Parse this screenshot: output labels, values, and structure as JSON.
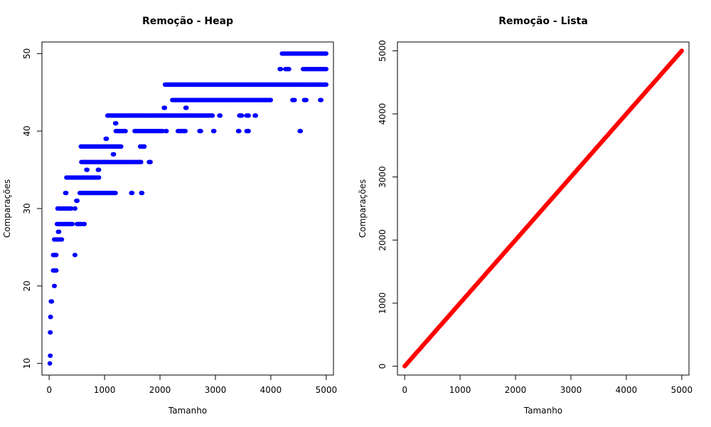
{
  "chart_data": [
    {
      "type": "scatter",
      "title": "Remoção - Heap",
      "xlabel": "Tamanho",
      "ylabel": "Comparações",
      "xlim": [
        -130,
        5130
      ],
      "ylim": [
        8.5,
        51.5
      ],
      "xticks": [
        0,
        1000,
        2000,
        3000,
        4000,
        5000
      ],
      "yticks": [
        10,
        20,
        30,
        40,
        50
      ],
      "grid": false,
      "color": "#0000ff",
      "x_range": [
        1,
        5000
      ],
      "levels": [
        {
          "y": 10,
          "x": [
            [
              10,
              15
            ]
          ]
        },
        {
          "y": 11,
          "x": [
            [
              15,
              25
            ]
          ]
        },
        {
          "y": 14,
          "x": [
            [
              15,
              25
            ]
          ]
        },
        {
          "y": 16,
          "x": [
            [
              20,
              30
            ]
          ]
        },
        {
          "y": 18,
          "x": [
            [
              30,
              50
            ]
          ]
        },
        {
          "y": 20,
          "x": [
            [
              90,
              100
            ]
          ]
        },
        {
          "y": 22,
          "x": [
            [
              70,
              130
            ]
          ]
        },
        {
          "y": 24,
          "x": [
            [
              70,
              130
            ],
            [
              460,
              470
            ]
          ]
        },
        {
          "y": 26,
          "x": [
            [
              90,
              230
            ]
          ]
        },
        {
          "y": 27,
          "x": [
            [
              160,
              180
            ]
          ]
        },
        {
          "y": 28,
          "x": [
            [
              140,
              420
            ],
            [
              500,
              580
            ],
            [
              620,
              640
            ]
          ]
        },
        {
          "y": 30,
          "x": [
            [
              150,
              400
            ],
            [
              460,
              470
            ]
          ]
        },
        {
          "y": 31,
          "x": [
            [
              490,
              510
            ]
          ]
        },
        {
          "y": 32,
          "x": [
            [
              290,
              310
            ],
            [
              550,
              1200
            ],
            [
              1480,
              1500
            ],
            [
              1660,
              1680
            ]
          ]
        },
        {
          "y": 34,
          "x": [
            [
              310,
              900
            ]
          ]
        },
        {
          "y": 35,
          "x": [
            [
              670,
              690
            ],
            [
              880,
              900
            ]
          ]
        },
        {
          "y": 36,
          "x": [
            [
              580,
              1660
            ],
            [
              1800,
              1830
            ]
          ]
        },
        {
          "y": 37,
          "x": [
            [
              1150,
              1170
            ]
          ]
        },
        {
          "y": 38,
          "x": [
            [
              570,
              1300
            ],
            [
              1640,
              1720
            ]
          ]
        },
        {
          "y": 39,
          "x": [
            [
              1020,
              1040
            ]
          ]
        },
        {
          "y": 40,
          "x": [
            [
              1200,
              1380
            ],
            [
              1540,
              2050
            ],
            [
              2100,
              2120
            ],
            [
              2320,
              2460
            ],
            [
              2710,
              2740
            ],
            [
              2960,
              2980
            ],
            [
              3410,
              3430
            ],
            [
              3560,
              3600
            ],
            [
              4520,
              4540
            ]
          ]
        },
        {
          "y": 41,
          "x": [
            [
              1190,
              1210
            ]
          ]
        },
        {
          "y": 42,
          "x": [
            [
              1050,
              2950
            ],
            [
              3070,
              3090
            ],
            [
              3430,
              3480
            ],
            [
              3560,
              3600
            ],
            [
              3710,
              3730
            ]
          ]
        },
        {
          "y": 43,
          "x": [
            [
              2070,
              2090
            ],
            [
              2460,
              2480
            ]
          ]
        },
        {
          "y": 44,
          "x": [
            [
              2220,
              4000
            ],
            [
              4390,
              4430
            ],
            [
              4600,
              4640
            ],
            [
              4890,
              4910
            ]
          ]
        },
        {
          "y": 46,
          "x": [
            [
              2090,
              5000
            ]
          ]
        },
        {
          "y": 48,
          "x": [
            [
              4160,
              4180
            ],
            [
              4260,
              4330
            ],
            [
              4580,
              5000
            ]
          ]
        },
        {
          "y": 50,
          "x": [
            [
              4200,
              5000
            ]
          ]
        }
      ]
    },
    {
      "type": "scatter",
      "title": "Remoção - Lista",
      "xlabel": "Tamanho",
      "ylabel": "Comparações",
      "xlim": [
        -130,
        5130
      ],
      "ylim": [
        -140,
        5140
      ],
      "xticks": [
        0,
        1000,
        2000,
        3000,
        4000,
        5000
      ],
      "yticks": [
        0,
        1000,
        2000,
        3000,
        4000,
        5000
      ],
      "grid": false,
      "color": "#ff0000",
      "relation": "y = x",
      "x_range": [
        1,
        5000
      ]
    }
  ]
}
